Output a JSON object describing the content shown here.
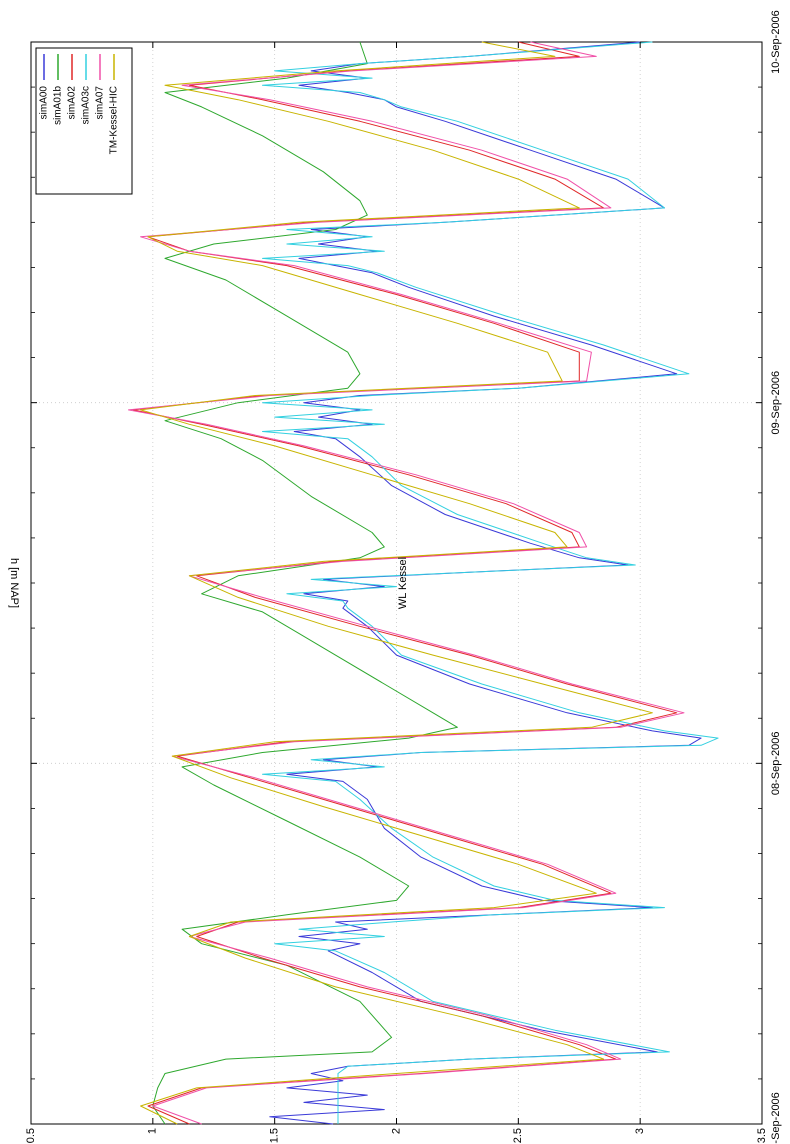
{
  "chart_data": {
    "type": "line",
    "orientation": "rotated-90-clockwise",
    "title": "WL Kessel",
    "ylabel": "h [m NAP]",
    "xlabel": "",
    "ylim": [
      0.5,
      3.5
    ],
    "y_ticks": [
      0.5,
      1,
      1.5,
      2,
      2.5,
      3,
      3.5
    ],
    "y_tick_labels": [
      "0.5",
      "1",
      "1.5",
      "2",
      "2.5",
      "3",
      "3.5"
    ],
    "xlim": [
      0,
      3
    ],
    "x_ticks": [
      0,
      1,
      2,
      3
    ],
    "x_tick_labels": [
      "07-Sep-2006",
      "08-Sep-2006",
      "09-Sep-2006",
      "10-Sep-2006"
    ],
    "x_units": "days since 07-Sep-2006 00:00",
    "grid": true,
    "legend_position": "top-right",
    "series": [
      {
        "name": "simA00",
        "color": "#3a3ad8",
        "x": [
          0.0,
          0.02,
          0.04,
          0.06,
          0.08,
          0.1,
          0.12,
          0.14,
          0.16,
          0.18,
          0.2,
          0.26,
          0.34,
          0.42,
          0.48,
          0.5,
          0.52,
          0.54,
          0.56,
          0.58,
          0.6,
          0.62,
          0.66,
          0.74,
          0.82,
          0.9,
          0.95,
          0.97,
          0.99,
          1.01,
          1.03,
          1.05,
          1.07,
          1.09,
          1.14,
          1.22,
          1.3,
          1.38,
          1.43,
          1.45,
          1.47,
          1.49,
          1.51,
          1.53,
          1.55,
          1.57,
          1.61,
          1.69,
          1.77,
          1.85,
          1.9,
          1.92,
          1.94,
          1.96,
          1.98,
          2.0,
          2.02,
          2.04,
          2.08,
          2.16,
          2.24,
          2.32,
          2.36,
          2.38,
          2.4,
          2.42,
          2.44,
          2.46,
          2.48,
          2.5,
          2.54,
          2.62,
          2.7,
          2.78,
          2.82,
          2.84,
          2.86,
          2.88,
          2.9,
          2.92,
          2.94,
          2.96,
          3.0
        ],
        "y": [
          1.74,
          1.48,
          1.95,
          1.62,
          1.88,
          1.55,
          1.78,
          1.65,
          1.8,
          2.3,
          3.07,
          2.6,
          2.1,
          1.9,
          1.72,
          1.85,
          1.6,
          1.88,
          1.75,
          2.4,
          3.05,
          2.6,
          2.35,
          2.1,
          1.95,
          1.88,
          1.78,
          1.55,
          1.92,
          1.7,
          2.1,
          3.2,
          3.25,
          3.05,
          2.7,
          2.3,
          2.0,
          1.88,
          1.78,
          1.8,
          1.62,
          1.95,
          1.7,
          2.3,
          2.95,
          2.75,
          2.55,
          2.2,
          1.98,
          1.85,
          1.75,
          1.58,
          1.9,
          1.68,
          1.85,
          1.62,
          1.85,
          2.5,
          3.15,
          2.8,
          2.4,
          2.05,
          1.9,
          1.75,
          1.6,
          1.92,
          1.68,
          1.88,
          1.65,
          2.2,
          3.1,
          2.9,
          2.55,
          2.2,
          2.0,
          1.95,
          1.8,
          1.6,
          1.88,
          1.65,
          1.85,
          2.3,
          3.0
        ]
      },
      {
        "name": "simA01b",
        "color": "#2ea82e",
        "x": [
          0.0,
          0.05,
          0.1,
          0.14,
          0.18,
          0.2,
          0.24,
          0.34,
          0.44,
          0.5,
          0.54,
          0.58,
          0.62,
          0.66,
          0.74,
          0.84,
          0.94,
          0.99,
          1.03,
          1.07,
          1.1,
          1.14,
          1.22,
          1.32,
          1.42,
          1.47,
          1.52,
          1.57,
          1.6,
          1.64,
          1.74,
          1.84,
          1.9,
          1.95,
          2.0,
          2.04,
          2.08,
          2.14,
          2.24,
          2.34,
          2.4,
          2.44,
          2.48,
          2.52,
          2.56,
          2.64,
          2.74,
          2.82,
          2.86,
          2.9,
          2.94,
          3.0
        ],
        "y": [
          1.05,
          1.0,
          1.02,
          1.05,
          1.3,
          1.9,
          1.98,
          1.85,
          1.55,
          1.2,
          1.12,
          1.55,
          2.0,
          2.05,
          1.85,
          1.55,
          1.25,
          1.12,
          1.45,
          2.05,
          2.25,
          2.15,
          1.95,
          1.7,
          1.45,
          1.2,
          1.35,
          1.85,
          1.95,
          1.9,
          1.65,
          1.45,
          1.28,
          1.05,
          1.35,
          1.8,
          1.85,
          1.8,
          1.55,
          1.3,
          1.05,
          1.25,
          1.75,
          1.88,
          1.85,
          1.7,
          1.45,
          1.2,
          1.05,
          1.55,
          1.88,
          1.85
        ]
      },
      {
        "name": "simA02",
        "color": "#e02828",
        "x": [
          0.0,
          0.05,
          0.1,
          0.14,
          0.18,
          0.22,
          0.3,
          0.38,
          0.46,
          0.52,
          0.56,
          0.6,
          0.64,
          0.72,
          0.8,
          0.88,
          0.96,
          1.02,
          1.06,
          1.1,
          1.14,
          1.22,
          1.3,
          1.38,
          1.46,
          1.52,
          1.56,
          1.6,
          1.64,
          1.72,
          1.8,
          1.88,
          1.94,
          1.98,
          2.02,
          2.06,
          2.14,
          2.22,
          2.3,
          2.38,
          2.42,
          2.46,
          2.5,
          2.54,
          2.62,
          2.7,
          2.78,
          2.84,
          2.88,
          2.92,
          2.96,
          3.0
        ],
        "y": [
          1.15,
          0.98,
          1.2,
          2.1,
          2.9,
          2.75,
          2.35,
          1.85,
          1.45,
          1.18,
          1.35,
          2.5,
          2.88,
          2.6,
          2.2,
          1.8,
          1.4,
          1.1,
          1.55,
          2.9,
          3.15,
          2.7,
          2.3,
          1.85,
          1.42,
          1.18,
          1.75,
          2.75,
          2.72,
          2.45,
          2.05,
          1.6,
          1.2,
          0.92,
          1.45,
          2.75,
          2.75,
          2.4,
          2.0,
          1.55,
          1.15,
          0.98,
          1.65,
          2.85,
          2.65,
          2.3,
          1.85,
          1.45,
          1.15,
          1.8,
          2.75,
          2.5
        ]
      },
      {
        "name": "simA03c",
        "color": "#33d0e0",
        "x": [
          0.0,
          0.02,
          0.04,
          0.06,
          0.08,
          0.1,
          0.12,
          0.14,
          0.16,
          0.18,
          0.2,
          0.26,
          0.34,
          0.42,
          0.48,
          0.5,
          0.52,
          0.54,
          0.56,
          0.58,
          0.6,
          0.62,
          0.66,
          0.74,
          0.82,
          0.9,
          0.95,
          0.97,
          0.99,
          1.01,
          1.03,
          1.05,
          1.07,
          1.09,
          1.14,
          1.22,
          1.3,
          1.38,
          1.43,
          1.45,
          1.47,
          1.49,
          1.51,
          1.53,
          1.55,
          1.57,
          1.61,
          1.69,
          1.77,
          1.85,
          1.9,
          1.92,
          1.94,
          1.96,
          1.98,
          2.0,
          2.02,
          2.04,
          2.08,
          2.16,
          2.24,
          2.32,
          2.36,
          2.38,
          2.4,
          2.42,
          2.44,
          2.46,
          2.48,
          2.5,
          2.54,
          2.62,
          2.7,
          2.78,
          2.82,
          2.84,
          2.86,
          2.88,
          2.9,
          2.92,
          2.94,
          2.96,
          3.0
        ],
        "y": [
          1.76,
          1.76,
          1.76,
          1.76,
          1.76,
          1.76,
          1.76,
          1.76,
          1.8,
          2.3,
          3.12,
          2.65,
          2.15,
          1.95,
          1.75,
          1.5,
          1.95,
          1.6,
          1.98,
          2.4,
          3.1,
          2.65,
          2.4,
          2.15,
          1.98,
          1.85,
          1.75,
          1.45,
          1.95,
          1.65,
          2.1,
          3.25,
          3.32,
          3.1,
          2.75,
          2.35,
          2.02,
          1.9,
          1.8,
          1.78,
          1.55,
          2.0,
          1.65,
          2.3,
          2.98,
          2.78,
          2.6,
          2.25,
          2.02,
          1.9,
          1.8,
          1.45,
          1.95,
          1.5,
          1.9,
          1.45,
          1.9,
          2.5,
          3.2,
          2.85,
          2.45,
          2.08,
          1.92,
          1.8,
          1.45,
          1.95,
          1.55,
          1.9,
          1.55,
          2.2,
          3.1,
          2.95,
          2.6,
          2.25,
          2.02,
          1.95,
          1.85,
          1.45,
          1.9,
          1.5,
          1.85,
          2.3,
          3.05
        ]
      },
      {
        "name": "simA07",
        "color": "#f050a8",
        "x": [
          0.0,
          0.05,
          0.1,
          0.14,
          0.18,
          0.22,
          0.3,
          0.38,
          0.46,
          0.52,
          0.56,
          0.6,
          0.64,
          0.72,
          0.8,
          0.88,
          0.96,
          1.02,
          1.06,
          1.1,
          1.14,
          1.22,
          1.3,
          1.38,
          1.46,
          1.52,
          1.56,
          1.6,
          1.64,
          1.72,
          1.8,
          1.88,
          1.94,
          1.98,
          2.02,
          2.06,
          2.14,
          2.22,
          2.3,
          2.38,
          2.42,
          2.46,
          2.5,
          2.54,
          2.62,
          2.7,
          2.78,
          2.84,
          2.88,
          2.92,
          2.96,
          3.0
        ],
        "y": [
          1.2,
          1.0,
          1.22,
          2.12,
          2.92,
          2.78,
          2.38,
          1.88,
          1.48,
          1.15,
          1.38,
          2.52,
          2.9,
          2.62,
          2.22,
          1.82,
          1.42,
          1.08,
          1.58,
          2.92,
          3.18,
          2.72,
          2.32,
          1.88,
          1.45,
          1.15,
          1.78,
          2.78,
          2.75,
          2.48,
          2.08,
          1.62,
          1.22,
          0.9,
          1.48,
          2.78,
          2.8,
          2.42,
          2.02,
          1.58,
          1.15,
          0.95,
          1.68,
          2.88,
          2.7,
          2.35,
          1.9,
          1.48,
          1.12,
          1.82,
          2.82,
          2.55
        ]
      },
      {
        "name": "TM-Kessel-HIC",
        "color": "#c8b400",
        "x": [
          0.0,
          0.05,
          0.1,
          0.14,
          0.18,
          0.22,
          0.3,
          0.38,
          0.46,
          0.52,
          0.56,
          0.6,
          0.64,
          0.72,
          0.8,
          0.88,
          0.96,
          1.02,
          1.06,
          1.1,
          1.14,
          1.22,
          1.3,
          1.38,
          1.46,
          1.52,
          1.56,
          1.6,
          1.64,
          1.72,
          1.8,
          1.88,
          1.94,
          1.98,
          2.02,
          2.06,
          2.14,
          2.22,
          2.3,
          2.38,
          2.42,
          2.46,
          2.5,
          2.54,
          2.62,
          2.7,
          2.78,
          2.84,
          2.88,
          2.92,
          2.96,
          3.0
        ],
        "y": [
          1.1,
          0.95,
          1.18,
          2.0,
          2.85,
          2.7,
          2.25,
          1.75,
          1.38,
          1.15,
          1.32,
          2.4,
          2.82,
          2.5,
          2.1,
          1.7,
          1.32,
          1.08,
          1.5,
          2.8,
          3.05,
          2.6,
          2.15,
          1.72,
          1.35,
          1.15,
          1.7,
          2.7,
          2.65,
          2.3,
          1.9,
          1.5,
          1.15,
          0.95,
          1.42,
          2.68,
          2.62,
          2.25,
          1.85,
          1.45,
          1.1,
          0.98,
          1.6,
          2.75,
          2.5,
          2.15,
          1.72,
          1.35,
          1.05,
          1.75,
          2.65,
          2.35
        ]
      }
    ]
  }
}
